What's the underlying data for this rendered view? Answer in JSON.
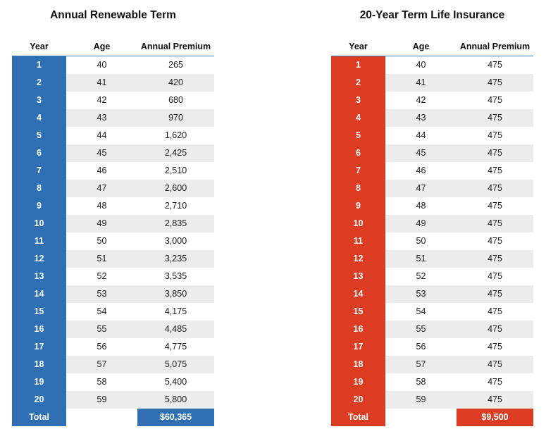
{
  "left": {
    "title": "Annual Renewable Term",
    "headers": {
      "year": "Year",
      "age": "Age",
      "premium": "Annual Premium"
    },
    "rows": [
      {
        "year": "1",
        "age": "40",
        "premium": "265"
      },
      {
        "year": "2",
        "age": "41",
        "premium": "420"
      },
      {
        "year": "3",
        "age": "42",
        "premium": "680"
      },
      {
        "year": "4",
        "age": "43",
        "premium": "970"
      },
      {
        "year": "5",
        "age": "44",
        "premium": "1,620"
      },
      {
        "year": "6",
        "age": "45",
        "premium": "2,425"
      },
      {
        "year": "7",
        "age": "46",
        "premium": "2,510"
      },
      {
        "year": "8",
        "age": "47",
        "premium": "2,600"
      },
      {
        "year": "9",
        "age": "48",
        "premium": "2,710"
      },
      {
        "year": "10",
        "age": "49",
        "premium": "2,835"
      },
      {
        "year": "11",
        "age": "50",
        "premium": "3,000"
      },
      {
        "year": "12",
        "age": "51",
        "premium": "3,235"
      },
      {
        "year": "13",
        "age": "52",
        "premium": "3,535"
      },
      {
        "year": "14",
        "age": "53",
        "premium": "3,850"
      },
      {
        "year": "15",
        "age": "54",
        "premium": "4,175"
      },
      {
        "year": "16",
        "age": "55",
        "premium": "4,485"
      },
      {
        "year": "17",
        "age": "56",
        "premium": "4,775"
      },
      {
        "year": "18",
        "age": "57",
        "premium": "5,075"
      },
      {
        "year": "19",
        "age": "58",
        "premium": "5,400"
      },
      {
        "year": "20",
        "age": "59",
        "premium": "5,800"
      }
    ],
    "total_label": "Total",
    "total_value": "$60,365",
    "accent_color": "#2f70b5"
  },
  "right": {
    "title": "20-Year Term Life Insurance",
    "headers": {
      "year": "Year",
      "age": "Age",
      "premium": "Annual Premium"
    },
    "rows": [
      {
        "year": "1",
        "age": "40",
        "premium": "475"
      },
      {
        "year": "2",
        "age": "41",
        "premium": "475"
      },
      {
        "year": "3",
        "age": "42",
        "premium": "475"
      },
      {
        "year": "4",
        "age": "43",
        "premium": "475"
      },
      {
        "year": "5",
        "age": "44",
        "premium": "475"
      },
      {
        "year": "6",
        "age": "45",
        "premium": "475"
      },
      {
        "year": "7",
        "age": "46",
        "premium": "475"
      },
      {
        "year": "8",
        "age": "47",
        "premium": "475"
      },
      {
        "year": "9",
        "age": "48",
        "premium": "475"
      },
      {
        "year": "10",
        "age": "49",
        "premium": "475"
      },
      {
        "year": "11",
        "age": "50",
        "premium": "475"
      },
      {
        "year": "12",
        "age": "51",
        "premium": "475"
      },
      {
        "year": "13",
        "age": "52",
        "premium": "475"
      },
      {
        "year": "14",
        "age": "53",
        "premium": "475"
      },
      {
        "year": "15",
        "age": "54",
        "premium": "475"
      },
      {
        "year": "16",
        "age": "55",
        "premium": "475"
      },
      {
        "year": "17",
        "age": "56",
        "premium": "475"
      },
      {
        "year": "18",
        "age": "57",
        "premium": "475"
      },
      {
        "year": "19",
        "age": "58",
        "premium": "475"
      },
      {
        "year": "20",
        "age": "59",
        "premium": "475"
      }
    ],
    "total_label": "Total",
    "total_value": "$9,500",
    "accent_color": "#db3c22"
  }
}
